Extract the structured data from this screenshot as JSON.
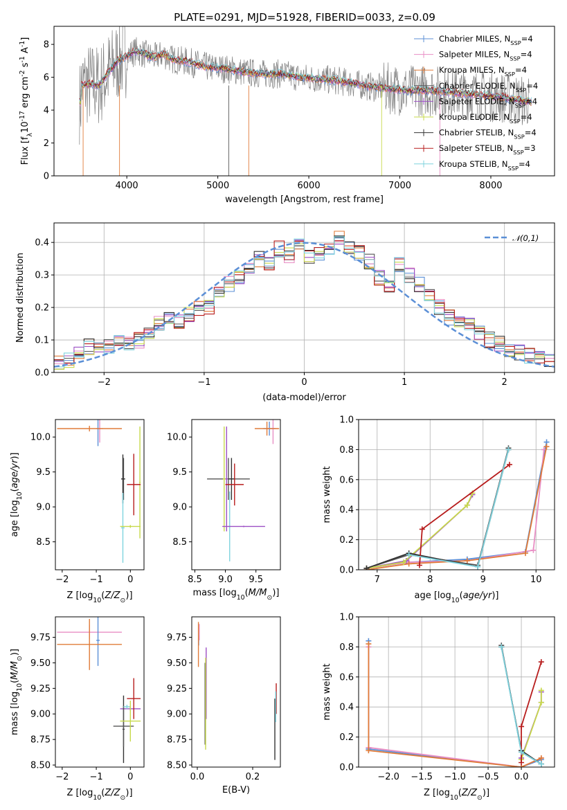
{
  "figure": {
    "title": "PLATE=0291, MJD=51928, FIBERID=0033, z=0.09",
    "models": [
      {
        "label": "Chabrier MILES, N$_{SSP}$=4",
        "color": "#5b8fd6"
      },
      {
        "label": "Salpeter MILES, N$_{SSP}$=4",
        "color": "#e88ec4"
      },
      {
        "label": "Kroupa MILES, N$_{SSP}$=4",
        "color": "#e07b39"
      },
      {
        "label": "Chabrier ELODIE, N$_{SSP}$=4",
        "color": "#555555"
      },
      {
        "label": "Salpeter ELODIE, N$_{SSP}$=4",
        "color": "#9c4fc4"
      },
      {
        "label": "Kroupa ELODIE, N$_{SSP}$=4",
        "color": "#c7d94a"
      },
      {
        "label": "Chabrier STELIB, N$_{SSP}$=4",
        "color": "#333333"
      },
      {
        "label": "Salpeter STELIB, N$_{SSP}$=3",
        "color": "#b71c1c"
      },
      {
        "label": "Kroupa STELIB, N$_{SSP}$=4",
        "color": "#7fd3de"
      }
    ]
  },
  "chart_data": [
    {
      "type": "line",
      "id": "spectrum",
      "title": "PLATE=0291, MJD=51928, FIBERID=0033, z=0.09",
      "xlabel": "wavelength [Angstrom, rest frame]",
      "ylabel": "Flux [f$_λ$10$^{-17}$ erg cm$^{-2}$ s$^{-1}$ A$^{-1}$]",
      "xlim": [
        3200,
        8700
      ],
      "ylim": [
        0,
        9.1
      ],
      "xticks": [
        4000,
        5000,
        6000,
        7000,
        8000
      ],
      "yticks": [
        0,
        2,
        4,
        6,
        8
      ],
      "continuum": {
        "x": [
          3500,
          3600,
          3700,
          3800,
          3900,
          4000,
          4100,
          4200,
          4300,
          4400,
          4500,
          4700,
          4900,
          5100,
          5300,
          5500,
          5700,
          5900,
          6100,
          6300,
          6500,
          6700,
          6900,
          7100,
          7300,
          7500,
          7700,
          7900,
          8100,
          8300,
          8450
        ],
        "y": [
          5.5,
          5.6,
          5.5,
          6.3,
          7.0,
          7.3,
          7.6,
          7.4,
          7.2,
          7.4,
          7.1,
          6.9,
          6.6,
          6.5,
          6.3,
          6.2,
          6.2,
          6.0,
          5.9,
          5.8,
          5.6,
          5.4,
          5.3,
          5.2,
          5.2,
          5.1,
          5.0,
          4.9,
          4.8,
          4.6,
          4.5
        ]
      },
      "grid": false,
      "legend": "top-right",
      "note": "observed spectrum drawn in grey, models overlaid in colours"
    },
    {
      "type": "line",
      "id": "residuals",
      "xlabel": "(data-model)/error",
      "ylabel": "Normed distribution",
      "xlim": [
        -2.5,
        2.5
      ],
      "ylim": [
        0,
        0.46
      ],
      "xticks": [
        -2,
        -1,
        0,
        1,
        2
      ],
      "yticks": [
        0.0,
        0.1,
        0.2,
        0.3,
        0.4
      ],
      "gaussian_label": "$\\mathcal{N}(0,1)$",
      "gaussian_color": "#5b8fd6",
      "bins": [
        -2.5,
        -2.4,
        -2.3,
        -2.2,
        -2.1,
        -2.0,
        -1.9,
        -1.8,
        -1.7,
        -1.6,
        -1.5,
        -1.4,
        -1.3,
        -1.2,
        -1.1,
        -1.0,
        -0.9,
        -0.8,
        -0.7,
        -0.6,
        -0.5,
        -0.4,
        -0.3,
        -0.2,
        -0.1,
        0.0,
        0.1,
        0.2,
        0.3,
        0.4,
        0.5,
        0.6,
        0.7,
        0.8,
        0.9,
        1.0,
        1.1,
        1.2,
        1.3,
        1.4,
        1.5,
        1.6,
        1.7,
        1.8,
        1.9,
        2.0,
        2.1,
        2.2,
        2.3,
        2.4,
        2.5
      ],
      "hist_base": [
        0.03,
        0.04,
        0.06,
        0.08,
        0.07,
        0.08,
        0.09,
        0.09,
        0.1,
        0.12,
        0.15,
        0.17,
        0.16,
        0.18,
        0.2,
        0.2,
        0.24,
        0.27,
        0.29,
        0.32,
        0.35,
        0.34,
        0.38,
        0.36,
        0.39,
        0.36,
        0.37,
        0.38,
        0.41,
        0.39,
        0.37,
        0.34,
        0.29,
        0.26,
        0.33,
        0.3,
        0.27,
        0.23,
        0.2,
        0.17,
        0.16,
        0.15,
        0.12,
        0.1,
        0.09,
        0.07,
        0.06,
        0.05,
        0.04,
        0.04
      ],
      "grid": true,
      "legend": "top-right"
    },
    {
      "type": "scatter",
      "id": "age_vs_Z",
      "xlabel": "Z [log$_{10}$($Z/Z_\\odot$)]",
      "ylabel": "age  [log$_{10}$($age/yr$)]",
      "xlim": [
        -2.2,
        0.4
      ],
      "ylim": [
        8.1,
        10.25
      ],
      "xticks": [
        -2,
        -1,
        0
      ],
      "yticks": [
        8.5,
        9.0,
        9.5,
        10.0
      ],
      "points": [
        {
          "model": 0,
          "x": -0.95,
          "y": 10.12,
          "xerr": 0.05,
          "yerr": 0.25
        },
        {
          "model": 1,
          "x": -0.9,
          "y": 10.12,
          "xerr": 0.1,
          "yerr": 0.2
        },
        {
          "model": 2,
          "x": -1.2,
          "y": 10.12,
          "xerr": 0.95,
          "yerr": 0.04
        },
        {
          "model": 3,
          "x": -0.2,
          "y": 9.4,
          "xerr": 0.05,
          "yerr": 0.3
        },
        {
          "model": 5,
          "x": 0.28,
          "y": 9.35,
          "xerr": 0.02,
          "yerr": 0.8
        },
        {
          "model": 6,
          "x": -0.22,
          "y": 9.4,
          "xerr": 0.05,
          "yerr": 0.35
        },
        {
          "model": 7,
          "x": 0.1,
          "y": 9.32,
          "xerr": 0.2,
          "yerr": 0.44
        },
        {
          "model": 8,
          "x": -0.22,
          "y": 8.7,
          "xerr": 0.05,
          "yerr": 0.5
        },
        {
          "model": 5,
          "x": 0.0,
          "y": 8.72,
          "xerr": 0.3,
          "yerr": 0.02
        }
      ]
    },
    {
      "type": "scatter",
      "id": "age_vs_mass",
      "xlabel": "mass [log$_{10}$($M/M_\\odot$)]",
      "ylabel": "",
      "xlim": [
        8.45,
        9.9
      ],
      "ylim": [
        8.1,
        10.25
      ],
      "xticks": [
        8.5,
        9.0,
        9.5
      ],
      "yticks": [
        8.5,
        9.0,
        9.5,
        10.0
      ],
      "points": [
        {
          "model": 0,
          "x": 9.72,
          "y": 10.12,
          "xerr": 0.1,
          "yerr": 0.1
        },
        {
          "model": 1,
          "x": 9.78,
          "y": 10.12,
          "xerr": 0.08,
          "yerr": 0.22
        },
        {
          "model": 2,
          "x": 9.68,
          "y": 10.12,
          "xerr": 0.2,
          "yerr": 0.1
        },
        {
          "model": 3,
          "x": 9.05,
          "y": 9.4,
          "xerr": 0.35,
          "yerr": 0.3
        },
        {
          "model": 4,
          "x": 9.02,
          "y": 9.4,
          "xerr": 0.02,
          "yerr": 0.75
        },
        {
          "model": 5,
          "x": 8.98,
          "y": 9.4,
          "xerr": 0.02,
          "yerr": 0.75
        },
        {
          "model": 6,
          "x": 9.1,
          "y": 9.4,
          "xerr": 0.05,
          "yerr": 0.3
        },
        {
          "model": 7,
          "x": 9.15,
          "y": 9.32,
          "xerr": 0.15,
          "yerr": 0.3
        },
        {
          "model": 8,
          "x": 9.07,
          "y": 8.72,
          "xerr": 0.02,
          "yerr": 0.5
        },
        {
          "model": 4,
          "x": 9.3,
          "y": 8.72,
          "xerr": 0.35,
          "yerr": 0.01
        }
      ]
    },
    {
      "type": "line",
      "id": "massweight_vs_age",
      "xlabel": "age  [log$_{10}$($age/yr$)]",
      "ylabel": "mass weight",
      "xlim": [
        6.65,
        10.35
      ],
      "ylim": [
        0,
        1
      ],
      "xticks": [
        7,
        8,
        9,
        10
      ],
      "yticks": [
        0.0,
        0.2,
        0.4,
        0.6,
        0.8,
        1.0
      ],
      "series": [
        {
          "model": 0,
          "x": [
            6.8,
            7.6,
            8.7,
            9.8,
            10.2
          ],
          "y": [
            0.01,
            0.05,
            0.07,
            0.12,
            0.85
          ]
        },
        {
          "model": 1,
          "x": [
            6.8,
            7.6,
            8.7,
            9.95,
            10.15
          ],
          "y": [
            0.01,
            0.05,
            0.06,
            0.13,
            0.8
          ]
        },
        {
          "model": 2,
          "x": [
            6.8,
            7.6,
            8.7,
            9.8,
            10.2
          ],
          "y": [
            0.0,
            0.04,
            0.06,
            0.11,
            0.82
          ]
        },
        {
          "model": 3,
          "x": [
            6.8,
            7.6,
            8.9,
            9.48
          ],
          "y": [
            0.01,
            0.1,
            0.03,
            0.81
          ]
        },
        {
          "model": 4,
          "x": [
            6.8,
            7.55,
            8.7,
            8.8
          ],
          "y": [
            0.01,
            0.06,
            0.43,
            0.5
          ]
        },
        {
          "model": 5,
          "x": [
            6.8,
            7.5,
            8.7,
            8.8
          ],
          "y": [
            0.01,
            0.05,
            0.43,
            0.51
          ]
        },
        {
          "model": 6,
          "x": [
            6.8,
            7.6,
            8.9,
            9.48
          ],
          "y": [
            0.01,
            0.11,
            0.02,
            0.8
          ]
        },
        {
          "model": 7,
          "x": [
            7.8,
            7.85,
            9.5
          ],
          "y": [
            0.03,
            0.27,
            0.7
          ]
        },
        {
          "model": 8,
          "x": [
            7.6,
            8.9,
            9.48
          ],
          "y": [
            0.1,
            0.02,
            0.8
          ]
        }
      ],
      "grid": true
    },
    {
      "type": "scatter",
      "id": "mass_vs_Z",
      "xlabel": "Z [log$_{10}$($Z/Z_\\odot$)]",
      "ylabel": "mass [log$_{10}$($M/M_\\odot$)]",
      "xlim": [
        -2.2,
        0.4
      ],
      "ylim": [
        8.48,
        9.95
      ],
      "xticks": [
        -2,
        -1,
        0
      ],
      "yticks": [
        8.5,
        8.75,
        9.0,
        9.25,
        9.5,
        9.75
      ],
      "points": [
        {
          "model": 1,
          "x": -1.2,
          "y": 9.8,
          "xerr": 0.95,
          "yerr": 0.07
        },
        {
          "model": 0,
          "x": -0.95,
          "y": 9.72,
          "xerr": 0.05,
          "yerr": 0.25
        },
        {
          "model": 2,
          "x": -1.2,
          "y": 9.68,
          "xerr": 0.95,
          "yerr": 0.25
        },
        {
          "model": 4,
          "x": 0.0,
          "y": 9.05,
          "xerr": 0.3,
          "yerr": 0.02
        },
        {
          "model": 6,
          "x": -0.2,
          "y": 8.85,
          "xerr": 0.03,
          "yerr": 0.33
        },
        {
          "model": 3,
          "x": -0.2,
          "y": 8.88,
          "xerr": 0.3,
          "yerr": 0.2
        },
        {
          "model": 7,
          "x": 0.1,
          "y": 9.15,
          "xerr": 0.2,
          "yerr": 0.2
        },
        {
          "model": 8,
          "x": -0.1,
          "y": 9.07,
          "xerr": 0.1,
          "yerr": 0.02
        },
        {
          "model": 5,
          "x": 0.0,
          "y": 8.93,
          "xerr": 0.3,
          "yerr": 0.2
        }
      ]
    },
    {
      "type": "scatter",
      "id": "mass_vs_ebv",
      "xlabel": "E(B-V)",
      "ylabel": "",
      "xlim": [
        -0.02,
        0.3
      ],
      "ylim": [
        8.48,
        9.95
      ],
      "xticks": [
        0.0,
        0.2
      ],
      "yticks": [
        8.5,
        8.75,
        9.0,
        9.25,
        9.5,
        9.75
      ],
      "points": [
        {
          "model": 0,
          "x": 0.005,
          "y": 9.72,
          "yerr": 0.05
        },
        {
          "model": 1,
          "x": 0.007,
          "y": 9.8,
          "yerr": 0.08
        },
        {
          "model": 2,
          "x": 0.004,
          "y": 9.68,
          "yerr": 0.22
        },
        {
          "model": 3,
          "x": 0.028,
          "y": 9.1,
          "yerr": 0.4
        },
        {
          "model": 4,
          "x": 0.032,
          "y": 9.3,
          "yerr": 0.35
        },
        {
          "model": 5,
          "x": 0.03,
          "y": 9.1,
          "yerr": 0.45
        },
        {
          "model": 6,
          "x": 0.28,
          "y": 8.85,
          "yerr": 0.3
        },
        {
          "model": 7,
          "x": 0.285,
          "y": 9.15,
          "yerr": 0.15
        },
        {
          "model": 8,
          "x": 0.283,
          "y": 9.07,
          "yerr": 0.15
        }
      ]
    },
    {
      "type": "line",
      "id": "massweight_vs_Z",
      "xlabel": "Z [log$_{10}$($Z/Z_\\odot$)]",
      "ylabel": "mass weight",
      "xlim": [
        -2.45,
        0.5
      ],
      "ylim": [
        0,
        1
      ],
      "xticks": [
        -2.0,
        -1.5,
        -1.0,
        -0.5,
        0.0
      ],
      "yticks": [
        0.0,
        0.2,
        0.4,
        0.6,
        0.8,
        1.0
      ],
      "series": [
        {
          "model": 0,
          "x": [
            -2.3,
            -2.3,
            0.0,
            0.3
          ],
          "y": [
            0.84,
            0.12,
            0.0,
            0.05
          ]
        },
        {
          "model": 1,
          "x": [
            -2.3,
            -2.3,
            0.0,
            0.3
          ],
          "y": [
            0.8,
            0.13,
            0.0,
            0.06
          ]
        },
        {
          "model": 2,
          "x": [
            -2.3,
            -2.3,
            0.0,
            0.3
          ],
          "y": [
            0.82,
            0.11,
            0.0,
            0.06
          ]
        },
        {
          "model": 3,
          "x": [
            -0.3,
            0.0,
            0.3
          ],
          "y": [
            0.81,
            0.1,
            0.02
          ]
        },
        {
          "model": 4,
          "x": [
            0.0,
            0.3,
            0.3
          ],
          "y": [
            0.06,
            0.43,
            0.5
          ]
        },
        {
          "model": 5,
          "x": [
            0.0,
            0.3,
            0.3
          ],
          "y": [
            0.05,
            0.43,
            0.51
          ]
        },
        {
          "model": 6,
          "x": [
            -0.3,
            0.0,
            0.3
          ],
          "y": [
            0.8,
            0.11,
            0.02
          ]
        },
        {
          "model": 7,
          "x": [
            0.0,
            0.0,
            0.3
          ],
          "y": [
            0.03,
            0.27,
            0.7
          ]
        },
        {
          "model": 8,
          "x": [
            -0.3,
            0.0,
            0.3
          ],
          "y": [
            0.8,
            0.1,
            0.02
          ]
        }
      ],
      "grid": true
    }
  ]
}
